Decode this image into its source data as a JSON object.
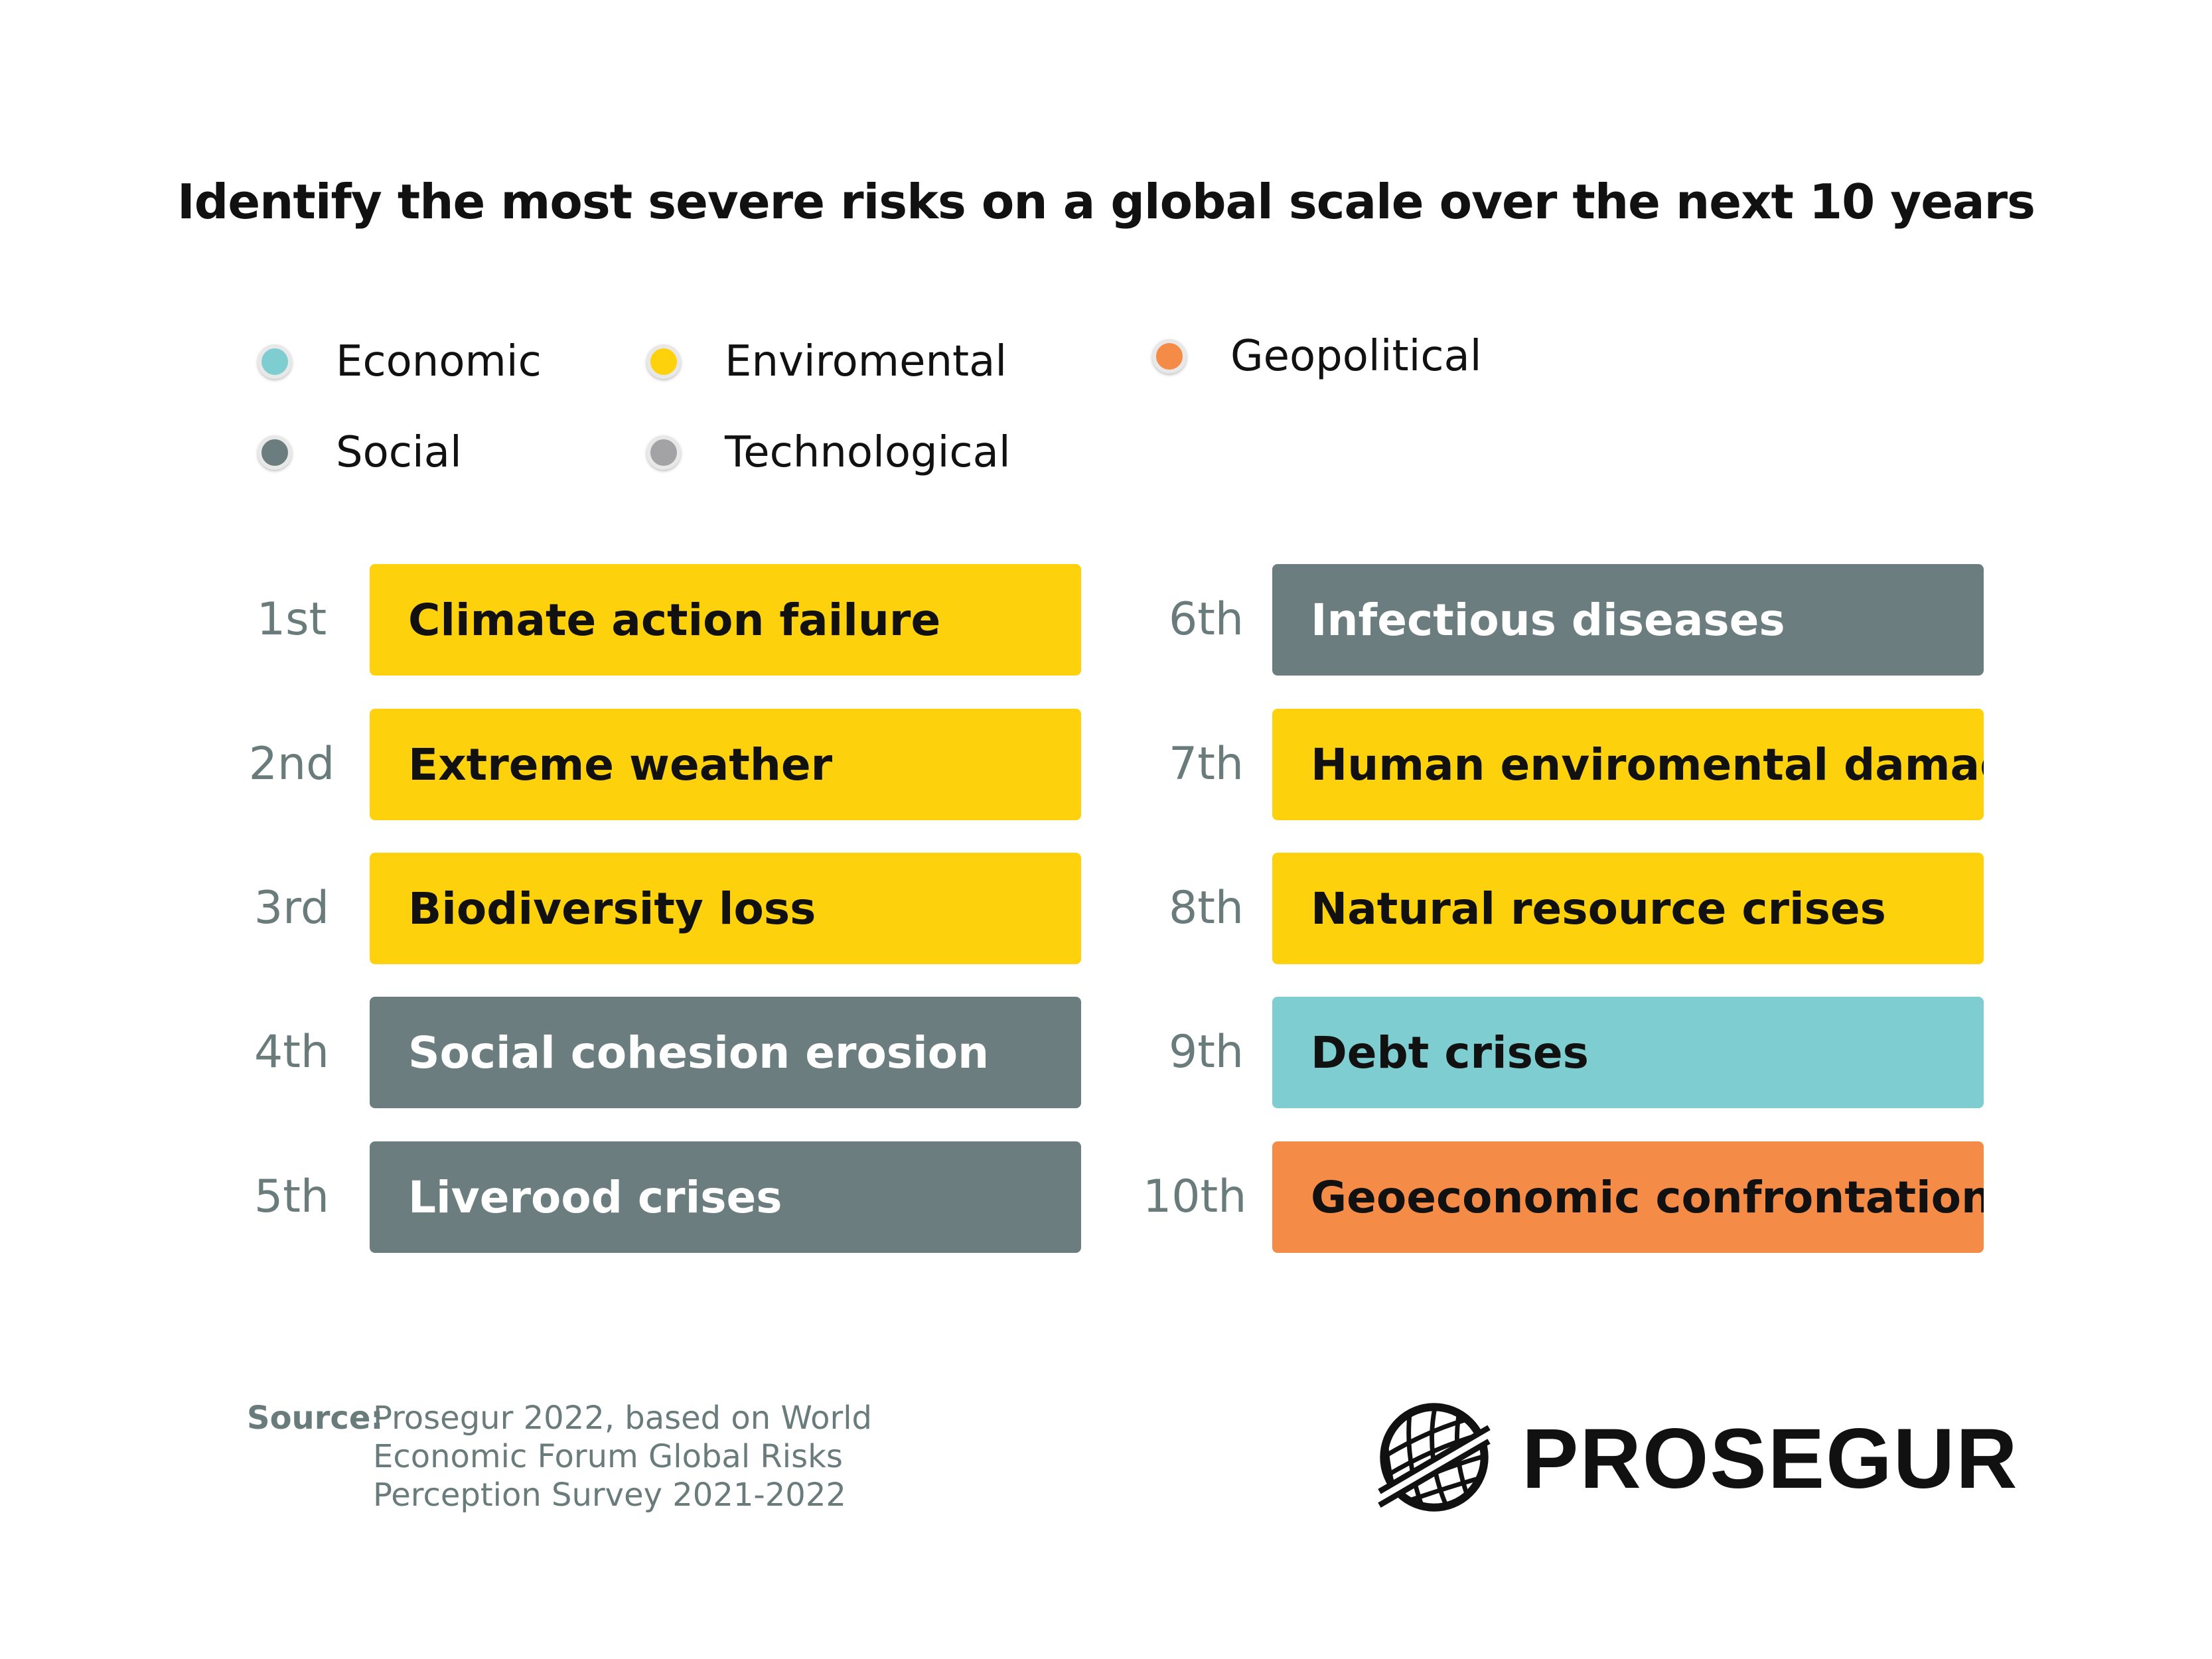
{
  "chart_data": {
    "type": "table",
    "title": "Identify the most severe risks on a global scale over the next 10 years",
    "legend": [
      {
        "name": "Economic",
        "color": "#7ecdd0"
      },
      {
        "name": "Enviromental",
        "color": "#fdd20c"
      },
      {
        "name": "Geopolitical",
        "color": "#f48b46"
      },
      {
        "name": "Social",
        "color": "#6b7d7e"
      },
      {
        "name": "Technological",
        "color": "#a3a3a6"
      }
    ],
    "rows": [
      {
        "rank": "1st",
        "label": "Climate action failure",
        "category": "Enviromental"
      },
      {
        "rank": "2nd",
        "label": "Extreme weather",
        "category": "Enviromental"
      },
      {
        "rank": "3rd",
        "label": "Biodiversity loss",
        "category": "Enviromental"
      },
      {
        "rank": "4th",
        "label": "Social cohesion erosion",
        "category": "Social"
      },
      {
        "rank": "5th",
        "label": "Liverood crises",
        "category": "Social"
      },
      {
        "rank": "6th",
        "label": "Infectious diseases",
        "category": "Social"
      },
      {
        "rank": "7th",
        "label": "Human enviromental damage",
        "category": "Enviromental"
      },
      {
        "rank": "8th",
        "label": "Natural resource crises",
        "category": "Enviromental"
      },
      {
        "rank": "9th",
        "label": "Debt crises",
        "category": "Economic"
      },
      {
        "rank": "10th",
        "label": "Geoeconomic confrontation",
        "category": "Geopolitical"
      }
    ]
  },
  "source": {
    "label": "Source:",
    "lines": [
      "Prosegur 2022, based on World",
      "Economic Forum Global Risks",
      "Perception Survey 2021-2022"
    ]
  },
  "logo": {
    "text": "PROSEGUR",
    "icon": "globe-icon"
  },
  "colors": {
    "Enviromental": {
      "bg": "#fdd20c",
      "fg": "#111111"
    },
    "Social": {
      "bg": "#6b7d7e",
      "fg": "#ffffff"
    },
    "Economic": {
      "bg": "#7ecdd0",
      "fg": "#111111"
    },
    "Geopolitical": {
      "bg": "#f48b46",
      "fg": "#111111"
    },
    "Technological": {
      "bg": "#a3a3a6",
      "fg": "#111111"
    }
  }
}
